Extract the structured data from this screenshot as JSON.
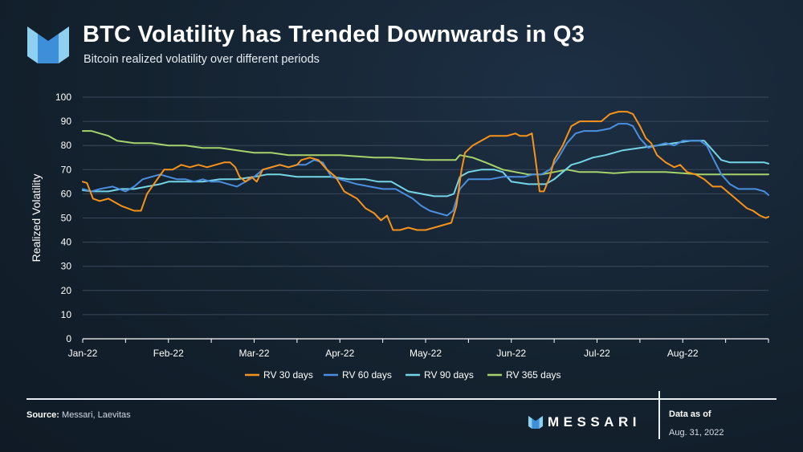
{
  "header": {
    "title": "BTC Volatility has Trended Downwards in Q3",
    "subtitle": "Bitcoin realized volatility over different periods"
  },
  "footer": {
    "source_label": "Source:",
    "source_text": "Messari, Laevitas",
    "brand": "MESSARI",
    "as_of_label": "Data as of",
    "as_of_date": "Aug. 31, 2022"
  },
  "colors": {
    "rv30": "#f7931a",
    "rv60": "#4a8fe0",
    "rv90": "#74d5e6",
    "rv365": "#a6d36b",
    "grid": "#3a4a5c",
    "logo_light": "#8fd0f0",
    "logo_dark": "#3c8fd8"
  },
  "chart_data": {
    "type": "line",
    "title": "BTC Volatility has Trended Downwards in Q3",
    "xlabel": "",
    "ylabel": "Realized Volatility",
    "ylim": [
      0,
      100
    ],
    "yticks": [
      0,
      10,
      20,
      30,
      40,
      50,
      60,
      70,
      80,
      90,
      100
    ],
    "xlim": [
      0,
      8
    ],
    "x_unit": "months since Jan 1, 2022",
    "xticks": [
      {
        "x": 0,
        "label": "Jan-22"
      },
      {
        "x": 1,
        "label": "Feb-22"
      },
      {
        "x": 2,
        "label": "Mar-22"
      },
      {
        "x": 3,
        "label": "Apr-22"
      },
      {
        "x": 4,
        "label": "May-22"
      },
      {
        "x": 5,
        "label": "Jun-22"
      },
      {
        "x": 6,
        "label": "Jul-22"
      },
      {
        "x": 7,
        "label": "Aug-22"
      }
    ],
    "grid": true,
    "legend": "bottom",
    "series": [
      {
        "key": "rv30",
        "name": "RV 30 days",
        "points": [
          [
            0,
            65
          ],
          [
            0.05,
            64.5
          ],
          [
            0.12,
            58
          ],
          [
            0.2,
            57
          ],
          [
            0.3,
            58
          ],
          [
            0.45,
            55
          ],
          [
            0.6,
            53
          ],
          [
            0.68,
            53
          ],
          [
            0.75,
            60
          ],
          [
            0.85,
            65
          ],
          [
            0.95,
            70
          ],
          [
            1.05,
            70
          ],
          [
            1.15,
            72
          ],
          [
            1.25,
            71
          ],
          [
            1.35,
            72
          ],
          [
            1.45,
            71
          ],
          [
            1.55,
            72
          ],
          [
            1.65,
            73
          ],
          [
            1.72,
            73
          ],
          [
            1.78,
            71
          ],
          [
            1.83,
            67
          ],
          [
            1.9,
            65
          ],
          [
            1.97,
            67
          ],
          [
            2.03,
            65
          ],
          [
            2.1,
            70
          ],
          [
            2.2,
            71
          ],
          [
            2.3,
            72
          ],
          [
            2.4,
            71
          ],
          [
            2.5,
            72
          ],
          [
            2.55,
            74
          ],
          [
            2.65,
            75
          ],
          [
            2.75,
            74
          ],
          [
            2.85,
            70
          ],
          [
            2.95,
            67
          ],
          [
            3.05,
            61
          ],
          [
            3.2,
            58
          ],
          [
            3.3,
            54
          ],
          [
            3.4,
            52
          ],
          [
            3.48,
            49
          ],
          [
            3.55,
            51
          ],
          [
            3.62,
            45
          ],
          [
            3.7,
            45
          ],
          [
            3.8,
            46
          ],
          [
            3.9,
            45
          ],
          [
            4.0,
            45
          ],
          [
            4.1,
            46
          ],
          [
            4.2,
            47
          ],
          [
            4.3,
            48
          ],
          [
            4.36,
            55
          ],
          [
            4.42,
            70
          ],
          [
            4.46,
            77
          ],
          [
            4.55,
            80
          ],
          [
            4.65,
            82
          ],
          [
            4.75,
            84
          ],
          [
            4.85,
            84
          ],
          [
            4.95,
            84
          ],
          [
            5.05,
            85
          ],
          [
            5.1,
            84
          ],
          [
            5.18,
            84
          ],
          [
            5.24,
            85
          ],
          [
            5.28,
            75
          ],
          [
            5.33,
            61
          ],
          [
            5.38,
            61
          ],
          [
            5.45,
            67
          ],
          [
            5.5,
            74
          ],
          [
            5.6,
            80
          ],
          [
            5.7,
            88
          ],
          [
            5.8,
            90
          ],
          [
            5.95,
            90
          ],
          [
            6.05,
            90
          ],
          [
            6.15,
            93
          ],
          [
            6.25,
            94
          ],
          [
            6.35,
            94
          ],
          [
            6.42,
            93
          ],
          [
            6.5,
            88
          ],
          [
            6.57,
            83
          ],
          [
            6.63,
            81
          ],
          [
            6.7,
            76
          ],
          [
            6.8,
            73
          ],
          [
            6.9,
            71
          ],
          [
            6.97,
            72
          ],
          [
            7.05,
            69
          ],
          [
            7.15,
            68
          ],
          [
            7.25,
            66
          ],
          [
            7.35,
            63
          ],
          [
            7.45,
            63
          ],
          [
            7.55,
            60
          ],
          [
            7.65,
            57
          ],
          [
            7.75,
            54
          ],
          [
            7.82,
            53
          ],
          [
            7.9,
            51
          ],
          [
            7.97,
            50
          ],
          [
            8.0,
            50.5
          ]
        ]
      },
      {
        "key": "rv60",
        "name": "RV 60 days",
        "points": [
          [
            0,
            62
          ],
          [
            0.1,
            61
          ],
          [
            0.2,
            62
          ],
          [
            0.35,
            63
          ],
          [
            0.5,
            61
          ],
          [
            0.6,
            63
          ],
          [
            0.7,
            66
          ],
          [
            0.8,
            67
          ],
          [
            0.9,
            68
          ],
          [
            1.0,
            67
          ],
          [
            1.1,
            66
          ],
          [
            1.2,
            66
          ],
          [
            1.3,
            65
          ],
          [
            1.4,
            66
          ],
          [
            1.5,
            65
          ],
          [
            1.6,
            65
          ],
          [
            1.7,
            64
          ],
          [
            1.8,
            63
          ],
          [
            1.9,
            65
          ],
          [
            2.0,
            67
          ],
          [
            2.1,
            70
          ],
          [
            2.2,
            71
          ],
          [
            2.3,
            72
          ],
          [
            2.4,
            71
          ],
          [
            2.5,
            72
          ],
          [
            2.6,
            72
          ],
          [
            2.7,
            74
          ],
          [
            2.8,
            73
          ],
          [
            2.9,
            67
          ],
          [
            3.0,
            66
          ],
          [
            3.1,
            65
          ],
          [
            3.2,
            64
          ],
          [
            3.35,
            63
          ],
          [
            3.5,
            62
          ],
          [
            3.65,
            62
          ],
          [
            3.75,
            60
          ],
          [
            3.85,
            58
          ],
          [
            3.95,
            55
          ],
          [
            4.05,
            53
          ],
          [
            4.15,
            52
          ],
          [
            4.25,
            51
          ],
          [
            4.32,
            53
          ],
          [
            4.4,
            62
          ],
          [
            4.5,
            66
          ],
          [
            4.6,
            66
          ],
          [
            4.75,
            66
          ],
          [
            4.9,
            67
          ],
          [
            5.05,
            67
          ],
          [
            5.15,
            67
          ],
          [
            5.25,
            68
          ],
          [
            5.35,
            68
          ],
          [
            5.45,
            70
          ],
          [
            5.55,
            75
          ],
          [
            5.65,
            81
          ],
          [
            5.75,
            85
          ],
          [
            5.85,
            86
          ],
          [
            6.0,
            86
          ],
          [
            6.15,
            87
          ],
          [
            6.25,
            89
          ],
          [
            6.35,
            89
          ],
          [
            6.42,
            88
          ],
          [
            6.5,
            83
          ],
          [
            6.6,
            79
          ],
          [
            6.7,
            80
          ],
          [
            6.8,
            81
          ],
          [
            6.9,
            80
          ],
          [
            7.0,
            82
          ],
          [
            7.1,
            82
          ],
          [
            7.2,
            82
          ],
          [
            7.28,
            80
          ],
          [
            7.35,
            75
          ],
          [
            7.45,
            68
          ],
          [
            7.55,
            64
          ],
          [
            7.65,
            62
          ],
          [
            7.75,
            62
          ],
          [
            7.85,
            62
          ],
          [
            7.95,
            61
          ],
          [
            8.0,
            59.5
          ]
        ]
      },
      {
        "key": "rv90",
        "name": "RV 90 days",
        "points": [
          [
            0,
            61.5
          ],
          [
            0.1,
            61
          ],
          [
            0.2,
            61
          ],
          [
            0.3,
            61
          ],
          [
            0.45,
            62
          ],
          [
            0.6,
            62
          ],
          [
            0.75,
            63
          ],
          [
            0.9,
            64
          ],
          [
            1.0,
            65
          ],
          [
            1.2,
            65
          ],
          [
            1.4,
            65
          ],
          [
            1.6,
            66
          ],
          [
            1.8,
            66
          ],
          [
            2.0,
            67
          ],
          [
            2.15,
            68
          ],
          [
            2.3,
            68
          ],
          [
            2.5,
            67
          ],
          [
            2.7,
            67
          ],
          [
            2.9,
            67
          ],
          [
            3.1,
            66
          ],
          [
            3.3,
            66
          ],
          [
            3.45,
            65
          ],
          [
            3.6,
            65
          ],
          [
            3.7,
            63
          ],
          [
            3.8,
            61
          ],
          [
            3.95,
            60
          ],
          [
            4.1,
            59
          ],
          [
            4.25,
            59
          ],
          [
            4.33,
            60
          ],
          [
            4.4,
            67
          ],
          [
            4.5,
            69
          ],
          [
            4.65,
            70
          ],
          [
            4.8,
            70
          ],
          [
            4.9,
            69
          ],
          [
            5.0,
            65
          ],
          [
            5.2,
            64
          ],
          [
            5.4,
            64
          ],
          [
            5.5,
            66
          ],
          [
            5.6,
            69
          ],
          [
            5.7,
            72
          ],
          [
            5.8,
            73
          ],
          [
            5.95,
            75
          ],
          [
            6.1,
            76
          ],
          [
            6.3,
            78
          ],
          [
            6.5,
            79
          ],
          [
            6.7,
            80
          ],
          [
            6.9,
            81
          ],
          [
            7.1,
            82
          ],
          [
            7.25,
            82
          ],
          [
            7.35,
            78
          ],
          [
            7.45,
            74
          ],
          [
            7.55,
            73
          ],
          [
            7.7,
            73
          ],
          [
            7.85,
            73
          ],
          [
            7.95,
            73
          ],
          [
            8.0,
            72.5
          ]
        ]
      },
      {
        "key": "rv365",
        "name": "RV 365 days",
        "points": [
          [
            0,
            86
          ],
          [
            0.1,
            86
          ],
          [
            0.2,
            85
          ],
          [
            0.3,
            84
          ],
          [
            0.4,
            82
          ],
          [
            0.6,
            81
          ],
          [
            0.8,
            81
          ],
          [
            1.0,
            80
          ],
          [
            1.2,
            80
          ],
          [
            1.4,
            79
          ],
          [
            1.6,
            79
          ],
          [
            1.8,
            78
          ],
          [
            2.0,
            77
          ],
          [
            2.2,
            77
          ],
          [
            2.4,
            76
          ],
          [
            2.6,
            76
          ],
          [
            2.8,
            76
          ],
          [
            3.0,
            76
          ],
          [
            3.2,
            75.5
          ],
          [
            3.4,
            75
          ],
          [
            3.6,
            75
          ],
          [
            3.8,
            74.5
          ],
          [
            4.0,
            74
          ],
          [
            4.2,
            74
          ],
          [
            4.35,
            74
          ],
          [
            4.4,
            76
          ],
          [
            4.55,
            75
          ],
          [
            4.7,
            73
          ],
          [
            4.9,
            70
          ],
          [
            5.05,
            69
          ],
          [
            5.2,
            68
          ],
          [
            5.35,
            68
          ],
          [
            5.5,
            69
          ],
          [
            5.65,
            70
          ],
          [
            5.8,
            69
          ],
          [
            6.0,
            69
          ],
          [
            6.2,
            68.5
          ],
          [
            6.4,
            69
          ],
          [
            6.6,
            69
          ],
          [
            6.8,
            69
          ],
          [
            7.0,
            68.5
          ],
          [
            7.2,
            68
          ],
          [
            7.4,
            68
          ],
          [
            7.6,
            68
          ],
          [
            7.8,
            68
          ],
          [
            8.0,
            68
          ]
        ]
      }
    ]
  }
}
